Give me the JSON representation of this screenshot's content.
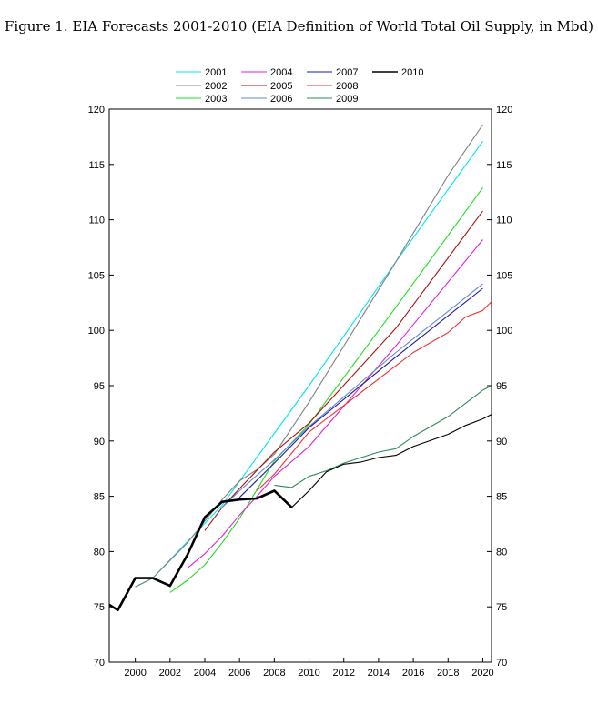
{
  "figure": {
    "title": "Figure 1. EIA Forecasts 2001-2010 (EIA Definition of World Total Oil Supply, in Mbd)"
  },
  "chart_data": {
    "type": "line",
    "title": "Figure 1. EIA Forecasts 2001-2010 (EIA Definition of World Total Oil Supply, in Mbd)",
    "xlabel": "",
    "ylabel": "",
    "xlim": [
      1998.5,
      2020.5
    ],
    "ylim": [
      70,
      120
    ],
    "x_ticks": [
      2000,
      2002,
      2004,
      2006,
      2008,
      2010,
      2012,
      2014,
      2016,
      2018,
      2020
    ],
    "y_ticks": [
      70,
      75,
      80,
      85,
      90,
      95,
      100,
      105,
      110,
      115,
      120
    ],
    "y_axis_labels_on": "both sides",
    "grid": false,
    "legend_placement": "top-center",
    "series": [
      {
        "name": "2001",
        "color": "#00e5ee",
        "points": [
          [
            2000,
            76.8
          ],
          [
            2001,
            77.6
          ],
          [
            2005,
            84.2
          ],
          [
            2010,
            95.0
          ],
          [
            2015,
            106.2
          ],
          [
            2020,
            117.1
          ]
        ]
      },
      {
        "name": "2002",
        "color": "#808080",
        "points": [
          [
            2000,
            76.8
          ],
          [
            2001,
            77.6
          ],
          [
            2003,
            80.8
          ],
          [
            2005,
            84.7
          ],
          [
            2006,
            86.4
          ],
          [
            2007,
            87.4
          ],
          [
            2008,
            88.8
          ],
          [
            2010,
            93.5
          ],
          [
            2015,
            106.2
          ],
          [
            2018,
            114.0
          ],
          [
            2020,
            118.6
          ]
        ]
      },
      {
        "name": "2003",
        "color": "#22dd22",
        "points": [
          [
            2002,
            76.3
          ],
          [
            2003,
            77.4
          ],
          [
            2004,
            78.8
          ],
          [
            2005,
            80.8
          ],
          [
            2006,
            83.0
          ],
          [
            2007,
            85.6
          ],
          [
            2008,
            88.2
          ],
          [
            2010,
            91.5
          ],
          [
            2015,
            102.1
          ],
          [
            2020,
            112.9
          ]
        ]
      },
      {
        "name": "2004",
        "color": "#dd22dd",
        "points": [
          [
            2003,
            78.5
          ],
          [
            2004,
            79.8
          ],
          [
            2005,
            81.4
          ],
          [
            2006,
            83.3
          ],
          [
            2007,
            85.0
          ],
          [
            2008,
            86.8
          ],
          [
            2010,
            89.5
          ],
          [
            2015,
            98.6
          ],
          [
            2020,
            108.2
          ]
        ]
      },
      {
        "name": "2005",
        "color": "#aa1111",
        "points": [
          [
            2004,
            81.9
          ],
          [
            2005,
            84.0
          ],
          [
            2006,
            85.7
          ],
          [
            2008,
            89.0
          ],
          [
            2010,
            91.6
          ],
          [
            2015,
            100.2
          ],
          [
            2020,
            110.8
          ]
        ]
      },
      {
        "name": "2006",
        "color": "#6688cc",
        "points": [
          [
            2005,
            84.0
          ],
          [
            2006,
            85.5
          ],
          [
            2008,
            88.3
          ],
          [
            2010,
            91.3
          ],
          [
            2015,
            98.0
          ],
          [
            2020,
            104.2
          ]
        ]
      },
      {
        "name": "2007",
        "color": "#1a1aa8",
        "points": [
          [
            2006,
            84.9
          ],
          [
            2008,
            88.0
          ],
          [
            2010,
            91.2
          ],
          [
            2015,
            97.6
          ],
          [
            2020,
            103.8
          ]
        ]
      },
      {
        "name": "2008",
        "color": "#ee3333",
        "points": [
          [
            2007,
            85.5
          ],
          [
            2008,
            87.0
          ],
          [
            2010,
            90.8
          ],
          [
            2015,
            96.8
          ],
          [
            2016,
            98.0
          ],
          [
            2018,
            99.8
          ],
          [
            2019,
            101.2
          ],
          [
            2020,
            101.8
          ],
          [
            2020.5,
            102.6
          ]
        ]
      },
      {
        "name": "2009",
        "color": "#2e8b57",
        "points": [
          [
            2008,
            86.0
          ],
          [
            2009,
            85.8
          ],
          [
            2010,
            86.8
          ],
          [
            2011,
            87.3
          ],
          [
            2012,
            88.0
          ],
          [
            2013,
            88.5
          ],
          [
            2014,
            89.0
          ],
          [
            2015,
            89.3
          ],
          [
            2016,
            90.4
          ],
          [
            2018,
            92.2
          ],
          [
            2020,
            94.6
          ],
          [
            2020.5,
            95.0
          ]
        ]
      },
      {
        "name": "2010",
        "color": "#000000",
        "points": [
          [
            2009,
            84.0
          ],
          [
            2010,
            85.5
          ],
          [
            2011,
            87.2
          ],
          [
            2012,
            87.9
          ],
          [
            2013,
            88.1
          ],
          [
            2014,
            88.5
          ],
          [
            2015,
            88.7
          ],
          [
            2016,
            89.5
          ],
          [
            2018,
            90.6
          ],
          [
            2019,
            91.4
          ],
          [
            2020,
            92.0
          ],
          [
            2020.5,
            92.4
          ]
        ]
      },
      {
        "name": "",
        "color": "#000000",
        "bold": true,
        "points": [
          [
            1998.5,
            75.2
          ],
          [
            1999,
            74.7
          ],
          [
            2000,
            77.6
          ],
          [
            2001,
            77.6
          ],
          [
            2002,
            76.9
          ],
          [
            2003,
            79.7
          ],
          [
            2004,
            83.1
          ],
          [
            2005,
            84.5
          ],
          [
            2006,
            84.7
          ],
          [
            2007,
            84.8
          ],
          [
            2008,
            85.5
          ],
          [
            2009,
            84.0
          ]
        ]
      }
    ]
  }
}
